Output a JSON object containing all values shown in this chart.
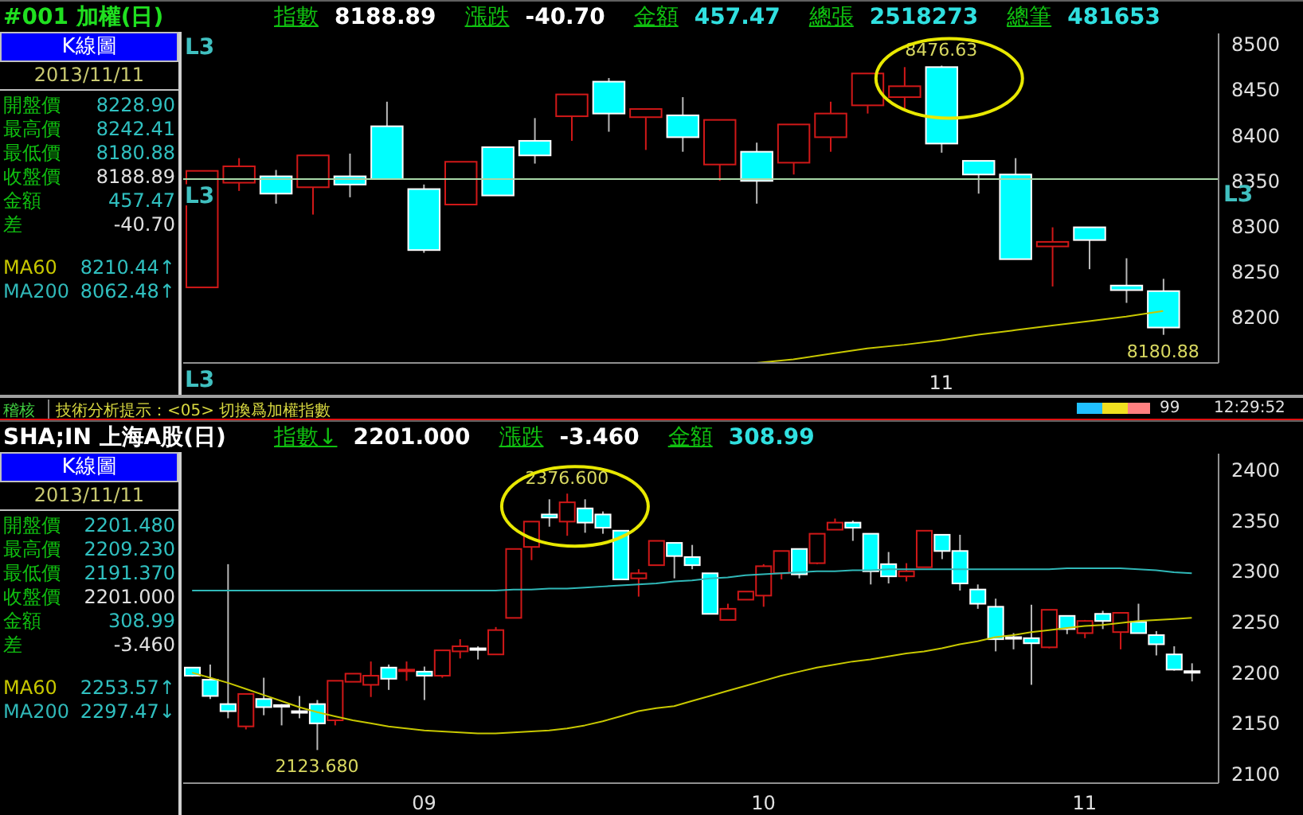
{
  "chart_data": [
    {
      "type": "candlestick",
      "title": "#001 加權(日)",
      "subtitle": "指數 8188.89 漲跌 -40.70 金額 457.47 總張 2518273 總筆 481653",
      "categories": [
        null,
        null,
        null,
        null,
        null,
        null,
        null,
        null,
        null,
        null,
        null,
        null,
        null,
        null,
        null,
        null,
        null,
        null,
        null,
        null,
        "11",
        null,
        null,
        null,
        null,
        null,
        null,
        null
      ],
      "series": [
        {
          "type": "candlestick",
          "ohlc": [
            [
              8233,
              8361,
              8233,
              8361
            ],
            [
              8348,
              8375,
              8339,
              8366
            ],
            [
              8355,
              8362,
              8325,
              8336
            ],
            [
              8343,
              8378,
              8313,
              8378
            ],
            [
              8355,
              8380,
              8332,
              8346
            ],
            [
              8410,
              8437,
              8352,
              8352
            ],
            [
              8341,
              8346,
              8271,
              8274
            ],
            [
              8324,
              8371,
              8324,
              8371
            ],
            [
              8387,
              8387,
              8334,
              8334
            ],
            [
              8394,
              8419,
              8369,
              8378
            ],
            [
              8421,
              8445,
              8394,
              8445
            ],
            [
              8459,
              8463,
              8404,
              8424
            ],
            [
              8420,
              8429,
              8384,
              8429
            ],
            [
              8422,
              8442,
              8382,
              8398
            ],
            [
              8368,
              8417,
              8350,
              8417
            ],
            [
              8382,
              8392,
              8325,
              8350
            ],
            [
              8370,
              8412,
              8357,
              8412
            ],
            [
              8398,
              8437,
              8382,
              8424
            ],
            [
              8433,
              8468,
              8424,
              8468
            ],
            [
              8442,
              8475,
              8428,
              8454
            ],
            [
              8475,
              8476.63,
              8381,
              8391
            ],
            [
              8372,
              8372,
              8336,
              8357
            ],
            [
              8357,
              8375,
              8264,
              8264
            ],
            [
              8278,
              8299,
              8234,
              8283
            ],
            [
              8299,
              8299,
              8253,
              8285
            ],
            [
              8235,
              8265,
              8216,
              8230
            ],
            [
              8228.9,
              8242.41,
              8180.88,
              8188.89
            ],
            null
          ],
          "colors": [
            "#d01818",
            "#d01818",
            "#00ffff",
            "#d01818",
            "#00ffff",
            "#00ffff",
            "#00ffff",
            "#d01818",
            "#00ffff",
            "#00ffff",
            "#d01818",
            "#00ffff",
            "#d01818",
            "#00ffff",
            "#d01818",
            "#00ffff",
            "#d01818",
            "#d01818",
            "#d01818",
            "#d01818",
            "#00ffff",
            "#00ffff",
            "#00ffff",
            "#d01818",
            "#00ffff",
            "#00ffff",
            "#00ffff",
            null
          ]
        },
        {
          "type": "line",
          "name": "MA60",
          "color": "#c8c800",
          "values": [
            null,
            null,
            null,
            null,
            null,
            null,
            null,
            null,
            null,
            null,
            null,
            null,
            null,
            null,
            null,
            8150,
            8154,
            8160,
            8166,
            8170,
            8175,
            8181,
            8186,
            8191,
            8196,
            8201,
            8207,
            null
          ]
        },
        {
          "type": "line",
          "name": "MA200",
          "color": "#30b8b8",
          "values": [
            null,
            null,
            null,
            null,
            null,
            null,
            null,
            null,
            null,
            null,
            null,
            null,
            null,
            null,
            null,
            null,
            null,
            null,
            null,
            null,
            null,
            null,
            null,
            null,
            null,
            null,
            null,
            null
          ]
        }
      ],
      "ylim": [
        8150,
        8512
      ],
      "yticks": [
        8200,
        8250,
        8300,
        8350,
        8400,
        8450,
        8500
      ],
      "ref_lines": [
        {
          "axis": "y",
          "value": 8352,
          "label": "L3",
          "color": "#a8d8a8"
        }
      ],
      "annotations": [
        "K線圖",
        "2013/11/11",
        "開盤價",
        "8228.90",
        "最高價",
        "8242.41",
        "最低價",
        "8180.88",
        "收盤價",
        "8188.89",
        "金額",
        "457.47",
        "差",
        "-40.70",
        "8210.44↑",
        "8062.48↑",
        "L3",
        "L3",
        {
          "text": "8476.63",
          "x": "11",
          "y": 8476.63
        },
        {
          "text": "8180.88",
          "y": 8180.88
        }
      ]
    },
    {
      "type": "other",
      "annotations": [
        "稽核",
        "技術分析提示：<05> 切換爲加權指數",
        "99",
        "12:29:52"
      ]
    },
    {
      "type": "candlestick",
      "title": "SHA;IN 上海A股(日)",
      "subtitle": "指數↓ 2201.000 漲跌 -3.460 金額 308.99",
      "categories": [
        null,
        null,
        null,
        null,
        null,
        null,
        null,
        null,
        null,
        null,
        null,
        null,
        null,
        "09",
        null,
        null,
        null,
        null,
        null,
        null,
        null,
        null,
        null,
        null,
        null,
        null,
        null,
        null,
        null,
        null,
        null,
        null,
        "10",
        null,
        null,
        null,
        null,
        null,
        null,
        null,
        null,
        null,
        null,
        null,
        null,
        null,
        null,
        null,
        null,
        null,
        "11",
        null,
        null,
        null,
        null,
        null,
        null,
        null
      ],
      "series": [
        {
          "type": "candlestick",
          "ohlc": [
            [
              2205,
              2205,
              2196,
              2197
            ],
            [
              2193,
              2208,
              2174,
              2177
            ],
            [
              2169,
              2307,
              2155,
              2162
            ],
            [
              2147,
              2179,
              2144,
              2179
            ],
            [
              2174,
              2195,
              2158,
              2166
            ],
            [
              2168,
              2169,
              2148,
              2167
            ],
            [
              2162,
              2177,
              2155,
              2162
            ],
            [
              2169,
              2173,
              2123.68,
              2150
            ],
            [
              2153,
              2192,
              2148,
              2192
            ],
            [
              2191,
              2199,
              2191,
              2199
            ],
            [
              2188,
              2211,
              2176,
              2197
            ],
            [
              2205,
              2208,
              2183,
              2194
            ],
            [
              2202,
              2211,
              2192,
              2203
            ],
            [
              2201,
              2206,
              2173,
              2197
            ],
            [
              2197,
              2222,
              2195,
              2222
            ],
            [
              2221,
              2233,
              2214,
              2226
            ],
            [
              2224,
              2226,
              2213,
              2224
            ],
            [
              2218,
              2245,
              2218,
              2242
            ],
            [
              2254,
              2322,
              2254,
              2322
            ],
            [
              2324,
              2349,
              2311,
              2349
            ],
            [
              2356,
              2371,
              2344,
              2353
            ],
            [
              2349,
              2376.6,
              2335,
              2368
            ],
            [
              2362,
              2371,
              2338,
              2348
            ],
            [
              2356,
              2359,
              2337,
              2343
            ],
            [
              2340,
              2340,
              2292,
              2292
            ],
            [
              2293,
              2302,
              2275,
              2298
            ],
            [
              2306,
              2330,
              2306,
              2330
            ],
            [
              2328,
              2328,
              2293,
              2315
            ],
            [
              2314,
              2326,
              2302,
              2306
            ],
            [
              2298,
              2298,
              2258,
              2258
            ],
            [
              2252,
              2268,
              2252,
              2263
            ],
            [
              2272,
              2280,
              2272,
              2280
            ],
            [
              2276,
              2307,
              2265,
              2305
            ],
            [
              2298,
              2320,
              2292,
              2320
            ],
            [
              2322,
              2322,
              2293,
              2297
            ],
            [
              2308,
              2337,
              2307,
              2337
            ],
            [
              2341,
              2352,
              2341,
              2348
            ],
            [
              2348,
              2350,
              2330,
              2343
            ],
            [
              2337,
              2337,
              2287,
              2300
            ],
            [
              2307,
              2319,
              2288,
              2295
            ],
            [
              2295,
              2308,
              2290,
              2300
            ],
            [
              2304,
              2340,
              2304,
              2340
            ],
            [
              2336,
              2336,
              2312,
              2320
            ],
            [
              2320,
              2336,
              2281,
              2288
            ],
            [
              2282,
              2287,
              2263,
              2268
            ],
            [
              2265,
              2273,
              2221,
              2233
            ],
            [
              2235,
              2239,
              2223,
              2235
            ],
            [
              2234,
              2267,
              2188,
              2229
            ],
            [
              2225,
              2262,
              2224,
              2262
            ],
            [
              2256,
              2256,
              2238,
              2243
            ],
            [
              2239,
              2252,
              2234,
              2251
            ],
            [
              2258,
              2261,
              2243,
              2251
            ],
            [
              2240,
              2259,
              2223,
              2259
            ],
            [
              2250,
              2268,
              2239,
              2239
            ],
            [
              2237,
              2241,
              2217,
              2228
            ],
            [
              2218,
              2226,
              2202,
              2203
            ],
            [
              2201.48,
              2209.23,
              2191.37,
              2201.0
            ],
            null
          ],
          "colors": [
            "#00ffff",
            "#00ffff",
            "#00ffff",
            "#d01818",
            "#00ffff",
            "#ffffff",
            "#ffffff",
            "#00ffff",
            "#d01818",
            "#d01818",
            "#d01818",
            "#00ffff",
            "#d01818",
            "#00ffff",
            "#d01818",
            "#d01818",
            "#ffffff",
            "#d01818",
            "#d01818",
            "#d01818",
            "#00ffff",
            "#d01818",
            "#00ffff",
            "#00ffff",
            "#00ffff",
            "#d01818",
            "#d01818",
            "#00ffff",
            "#00ffff",
            "#00ffff",
            "#d01818",
            "#d01818",
            "#d01818",
            "#d01818",
            "#00ffff",
            "#d01818",
            "#d01818",
            "#00ffff",
            "#00ffff",
            "#00ffff",
            "#d01818",
            "#d01818",
            "#00ffff",
            "#00ffff",
            "#00ffff",
            "#00ffff",
            "#ffffff",
            "#00ffff",
            "#d01818",
            "#00ffff",
            "#d01818",
            "#00ffff",
            "#d01818",
            "#00ffff",
            "#00ffff",
            "#00ffff",
            "#ffffff",
            null
          ]
        },
        {
          "type": "line",
          "name": "MA60",
          "color": "#c8c800",
          "values": [
            2200,
            2195,
            2190,
            2184,
            2178,
            2172,
            2166,
            2161,
            2157,
            2153,
            2150,
            2147,
            2145,
            2143,
            2142,
            2141,
            2140,
            2140,
            2141,
            2142,
            2143,
            2145,
            2148,
            2152,
            2157,
            2162,
            2165,
            2167,
            2172,
            2177,
            2182,
            2187,
            2192,
            2197,
            2201,
            2205,
            2208,
            2211,
            2213,
            2216,
            2219,
            2221,
            2224,
            2228,
            2231,
            2235,
            2237,
            2240,
            2242,
            2244,
            2246,
            2247,
            2249,
            2251,
            2252,
            2253,
            2254,
            null
          ]
        },
        {
          "type": "line",
          "name": "MA200",
          "color": "#30b8b8",
          "values": [
            2281,
            2281,
            2281,
            2281,
            2281,
            2281,
            2281,
            2281,
            2281,
            2281,
            2281,
            2281,
            2281,
            2281,
            2281,
            2281,
            2281,
            2281,
            2282,
            2282,
            2283,
            2283,
            2284,
            2285,
            2286,
            2287,
            2288,
            2290,
            2291,
            2293,
            2294,
            2296,
            2297,
            2298,
            2299,
            2300,
            2300,
            2301,
            2301,
            2302,
            2302,
            2302,
            2302,
            2302,
            2302,
            2302,
            2302,
            2302,
            2302,
            2303,
            2303,
            2303,
            2303,
            2302,
            2301,
            2299,
            2298,
            null
          ]
        }
      ],
      "ylim": [
        2091,
        2416
      ],
      "yticks": [
        2100,
        2150,
        2200,
        2250,
        2300,
        2350,
        2400
      ],
      "annotations": [
        "K線圖",
        "2013/11/11",
        "開盤價",
        "2201.480",
        "最高價",
        "2209.230",
        "最低價",
        "2191.370",
        "收盤價",
        "2201.000",
        "金額",
        "308.99",
        "差",
        "-3.460",
        "2253.57↑",
        "2297.47↓",
        {
          "text": "2376.600",
          "y": 2376.6
        },
        {
          "text": "2123.680",
          "y": 2123.68
        }
      ]
    }
  ]
}
